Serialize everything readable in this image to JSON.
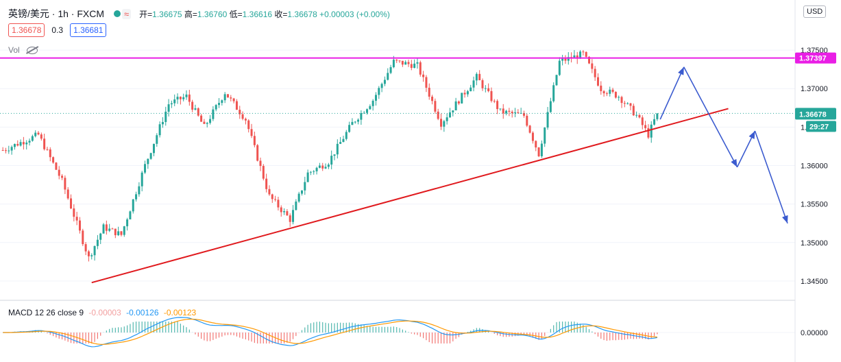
{
  "header": {
    "symbol": "英镑/美元 · 1h · FXCM",
    "status_icon": "green-dot-icon",
    "wave_icon": "≈",
    "ohlc": {
      "open_label": "开=",
      "open": "1.36675",
      "high_label": "高=",
      "high": "1.36760",
      "low_label": "低=",
      "low": "1.36616",
      "close_label": "收=",
      "close": "1.36678",
      "change": "+0.00003 (+0.00%)"
    },
    "sell_price": "1.36678",
    "spread": "0.3",
    "buy_price": "1.36681",
    "vol_label": "Vol",
    "currency": "USD"
  },
  "colors": {
    "up": "#26a69a",
    "down": "#ef5350",
    "resistance": "#e91ee5",
    "trendline": "#e0191d",
    "arrow": "#3b5bcf",
    "price_tag": "#26a69a",
    "macd_line": "#2196f3",
    "signal_line": "#ff9800"
  },
  "chart_data": [
    {
      "type": "candlestick",
      "title": "英镑/美元 · 1h · FXCM",
      "y_axis_ticks": [
        "1.37500",
        "1.37000",
        "1.36500",
        "1.36000",
        "1.35500",
        "1.35000",
        "1.34500"
      ],
      "ylim": [
        1.3425,
        1.3775
      ],
      "last_price": "1.36678",
      "countdown": "29:27",
      "resistance_level": "1.37397",
      "resistance_value": 1.37397,
      "waypoints": [
        {
          "bar": 0,
          "price": 1.362
        },
        {
          "bar": 12,
          "price": 1.364
        },
        {
          "bar": 20,
          "price": 1.358
        },
        {
          "bar": 29,
          "price": 1.348
        },
        {
          "bar": 34,
          "price": 1.352
        },
        {
          "bar": 40,
          "price": 1.351
        },
        {
          "bar": 48,
          "price": 1.36
        },
        {
          "bar": 56,
          "price": 1.368
        },
        {
          "bar": 62,
          "price": 1.369
        },
        {
          "bar": 68,
          "price": 1.365
        },
        {
          "bar": 75,
          "price": 1.3695
        },
        {
          "bar": 82,
          "price": 1.366
        },
        {
          "bar": 90,
          "price": 1.356
        },
        {
          "bar": 97,
          "price": 1.353
        },
        {
          "bar": 103,
          "price": 1.359
        },
        {
          "bar": 110,
          "price": 1.3605
        },
        {
          "bar": 118,
          "price": 1.3655
        },
        {
          "bar": 125,
          "price": 1.3685
        },
        {
          "bar": 132,
          "price": 1.3735
        },
        {
          "bar": 140,
          "price": 1.373
        },
        {
          "bar": 148,
          "price": 1.3655
        },
        {
          "bar": 155,
          "price": 1.369
        },
        {
          "bar": 160,
          "price": 1.3715
        },
        {
          "bar": 168,
          "price": 1.367
        },
        {
          "bar": 176,
          "price": 1.3665
        },
        {
          "bar": 181,
          "price": 1.3615
        },
        {
          "bar": 188,
          "price": 1.3735
        },
        {
          "bar": 196,
          "price": 1.3745
        },
        {
          "bar": 202,
          "price": 1.37
        },
        {
          "bar": 208,
          "price": 1.369
        },
        {
          "bar": 214,
          "price": 1.3665
        },
        {
          "bar": 218,
          "price": 1.364
        },
        {
          "bar": 221,
          "price": 1.3668
        }
      ],
      "trendline": [
        {
          "bar": 30,
          "price": 1.3448
        },
        {
          "bar": 245,
          "price": 1.3674
        }
      ],
      "projection_arrows": [
        {
          "from": {
            "bar": 222,
            "price": 1.366
          },
          "to": {
            "bar": 230,
            "price": 1.3728
          }
        },
        {
          "from": {
            "bar": 230,
            "price": 1.3728
          },
          "to": {
            "bar": 248,
            "price": 1.3598
          }
        },
        {
          "from": {
            "bar": 248,
            "price": 1.3598
          },
          "to": {
            "bar": 254,
            "price": 1.3645
          }
        },
        {
          "from": {
            "bar": 254,
            "price": 1.3645
          },
          "to": {
            "bar": 265,
            "price": 1.3525
          }
        }
      ],
      "total_slots": 280
    },
    {
      "type": "line",
      "title": "MACD 12 26 close 9",
      "values_text": {
        "histogram": "-0.00003",
        "macd": "-0.00126",
        "signal": "-0.00123"
      },
      "y_axis_ticks": [
        "0.00000"
      ]
    }
  ]
}
